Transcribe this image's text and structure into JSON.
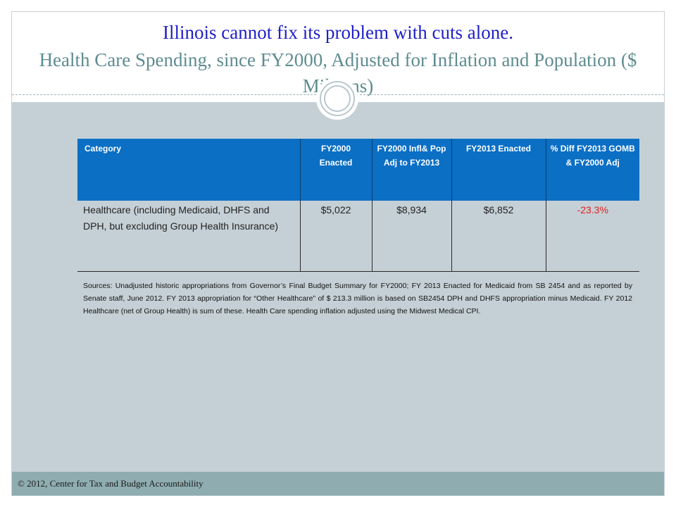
{
  "title": {
    "line1": "Illinois cannot fix its problem with cuts alone.",
    "line2": "Health Care Spending, since FY2000, Adjusted for Inflation and Population ($ Millions)"
  },
  "table": {
    "headers": [
      "Category",
      "FY2000 Enacted",
      "FY2000 Infl& Pop Adj to FY2013",
      "FY2013 Enacted",
      "% Diff FY2013 GOMB & FY2000 Adj"
    ],
    "rows": [
      {
        "category": "Healthcare (including Medicaid, DHFS and DPH, but excluding Group Health Insurance)",
        "fy2000_enacted": "$5,022",
        "fy2000_adj": "$8,934",
        "fy2013_enacted": "$6,852",
        "pct_diff": "-23.3%"
      }
    ]
  },
  "sources": "Sources: Unadjusted historic appropriations from Governor’s Final Budget Summary for FY2000; FY 2013 Enacted for Medicaid from SB 2454 and as reported by Senate staff, June 2012. FY 2013 appropriation for “Other Healthcare” of $ 213.3 million is based on SB2454 DPH and DHFS appropriation minus Medicaid. FY 2012 Healthcare (net of Group Health) is sum of these. Health Care spending inflation adjusted using the Midwest Medical CPI.",
  "footer": {
    "text": "© 2012, Center for Tax and Budget Accountability"
  },
  "colors": {
    "title_blue": "#1f1fc8",
    "subtitle_teal": "#5e8c90",
    "header_blue": "#0b6fc4",
    "body_gray": "#c5d0d6",
    "footer_teal": "#8fadb1",
    "negative_red": "#e02020"
  }
}
